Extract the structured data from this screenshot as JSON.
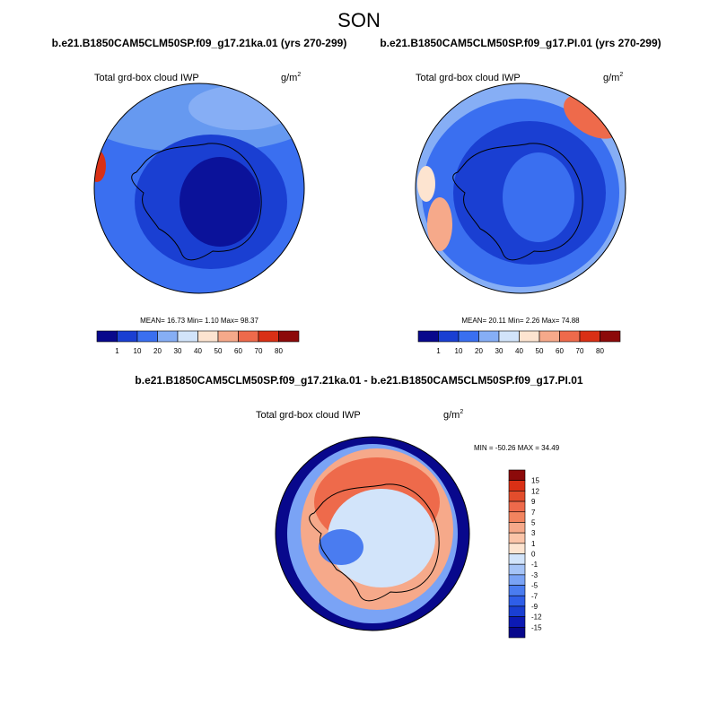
{
  "title": "SON",
  "panels": [
    {
      "case": "b.e21.B1850CAM5CLM50SP.f09_g17.21ka.01 (yrs 270-299)",
      "variable": "Total grd-box cloud IWP",
      "units": "g/m",
      "units_power": "2",
      "stats": "MEAN= 16.73  Min=  1.10  Max= 98.37",
      "colorbar": {
        "labels": [
          "1",
          "10",
          "20",
          "30",
          "40",
          "50",
          "60",
          "70",
          "80"
        ],
        "colors": [
          "#08088c",
          "#1a3fd2",
          "#3a6ff0",
          "#86aef5",
          "#d2e4fa",
          "#fde4d0",
          "#f6a98a",
          "#ee6a4b",
          "#d93015",
          "#8c0a0a"
        ]
      }
    },
    {
      "case": "b.e21.B1850CAM5CLM50SP.f09_g17.PI.01 (yrs 270-299)",
      "variable": "Total grd-box cloud IWP",
      "units": "g/m",
      "units_power": "2",
      "stats": "MEAN= 20.11  Min=  2.26  Max= 74.88",
      "colorbar": {
        "labels": [
          "1",
          "10",
          "20",
          "30",
          "40",
          "50",
          "60",
          "70",
          "80"
        ],
        "colors": [
          "#08088c",
          "#1a3fd2",
          "#3a6ff0",
          "#86aef5",
          "#d2e4fa",
          "#fde4d0",
          "#f6a98a",
          "#ee6a4b",
          "#d93015",
          "#8c0a0a"
        ]
      }
    }
  ],
  "difference": {
    "case": "b.e21.B1850CAM5CLM50SP.f09_g17.21ka.01 - b.e21.B1850CAM5CLM50SP.f09_g17.PI.01",
    "variable": "Total grd-box cloud IWP",
    "units": "g/m",
    "units_power": "2",
    "stats": "MIN = -50.26 MAX =  34.49",
    "colorbar": {
      "labels": [
        "15",
        "12",
        "9",
        "7",
        "5",
        "3",
        "1",
        "0",
        "-1",
        "-3",
        "-5",
        "-7",
        "-9",
        "-12",
        "-15"
      ],
      "colors": [
        "#8c0a0a",
        "#d93015",
        "#e24d2c",
        "#ee6a4b",
        "#f2845f",
        "#f6a98a",
        "#fbc4a8",
        "#fde4d0",
        "#d2e4fa",
        "#a6c4f7",
        "#7aa3f5",
        "#4a7cf0",
        "#2f5ee8",
        "#1a3fd2",
        "#0c1ab4",
        "#08088c"
      ]
    }
  }
}
